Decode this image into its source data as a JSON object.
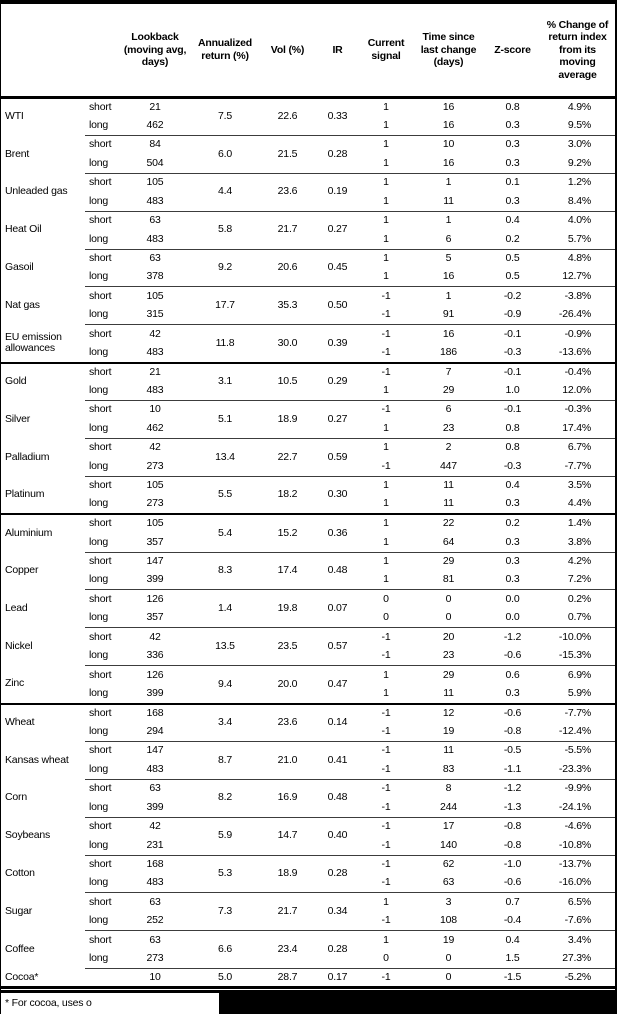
{
  "table": {
    "headers": [
      "",
      "",
      "Lookback (moving avg, days)",
      "Annualized return (%)",
      "Vol (%)",
      "IR",
      "Current signal",
      "Time since last change (days)",
      "Z-score",
      "% Change of return index from its moving average"
    ],
    "groups": [
      {
        "name": "WTI",
        "section": false,
        "merged": [
          "7.5",
          "22.6",
          "0.33"
        ],
        "rows": [
          [
            "short",
            "21",
            "1",
            "16",
            "0.8",
            "4.9%"
          ],
          [
            "long",
            "462",
            "1",
            "16",
            "0.3",
            "9.5%"
          ]
        ]
      },
      {
        "name": "Brent",
        "section": false,
        "merged": [
          "6.0",
          "21.5",
          "0.28"
        ],
        "rows": [
          [
            "short",
            "84",
            "1",
            "10",
            "0.3",
            "3.0%"
          ],
          [
            "long",
            "504",
            "1",
            "16",
            "0.3",
            "9.2%"
          ]
        ]
      },
      {
        "name": "Unleaded gas",
        "section": false,
        "merged": [
          "4.4",
          "23.6",
          "0.19"
        ],
        "rows": [
          [
            "short",
            "105",
            "1",
            "1",
            "0.1",
            "1.2%"
          ],
          [
            "long",
            "483",
            "1",
            "11",
            "0.3",
            "8.4%"
          ]
        ]
      },
      {
        "name": "Heat Oil",
        "section": false,
        "merged": [
          "5.8",
          "21.7",
          "0.27"
        ],
        "rows": [
          [
            "short",
            "63",
            "1",
            "1",
            "0.4",
            "4.0%"
          ],
          [
            "long",
            "483",
            "1",
            "6",
            "0.2",
            "5.7%"
          ]
        ]
      },
      {
        "name": "Gasoil",
        "section": false,
        "merged": [
          "9.2",
          "20.6",
          "0.45"
        ],
        "rows": [
          [
            "short",
            "63",
            "1",
            "5",
            "0.5",
            "4.8%"
          ],
          [
            "long",
            "378",
            "1",
            "16",
            "0.5",
            "12.7%"
          ]
        ]
      },
      {
        "name": "Nat gas",
        "section": false,
        "merged": [
          "17.7",
          "35.3",
          "0.50"
        ],
        "rows": [
          [
            "short",
            "105",
            "-1",
            "1",
            "-0.2",
            "-3.8%"
          ],
          [
            "long",
            "315",
            "-1",
            "91",
            "-0.9",
            "-26.4%"
          ]
        ]
      },
      {
        "name": "EU emission allowances",
        "section": false,
        "merged": [
          "11.8",
          "30.0",
          "0.39"
        ],
        "rows": [
          [
            "short",
            "42",
            "-1",
            "16",
            "-0.1",
            "-0.9%"
          ],
          [
            "long",
            "483",
            "-1",
            "186",
            "-0.3",
            "-13.6%"
          ]
        ]
      },
      {
        "name": "Gold",
        "section": true,
        "merged": [
          "3.1",
          "10.5",
          "0.29"
        ],
        "rows": [
          [
            "short",
            "21",
            "-1",
            "7",
            "-0.1",
            "-0.4%"
          ],
          [
            "long",
            "483",
            "1",
            "29",
            "1.0",
            "12.0%"
          ]
        ]
      },
      {
        "name": "Silver",
        "section": false,
        "merged": [
          "5.1",
          "18.9",
          "0.27"
        ],
        "rows": [
          [
            "short",
            "10",
            "-1",
            "6",
            "-0.1",
            "-0.3%"
          ],
          [
            "long",
            "462",
            "1",
            "23",
            "0.8",
            "17.4%"
          ]
        ]
      },
      {
        "name": "Palladium",
        "section": false,
        "merged": [
          "13.4",
          "22.7",
          "0.59"
        ],
        "rows": [
          [
            "short",
            "42",
            "1",
            "2",
            "0.8",
            "6.7%"
          ],
          [
            "long",
            "273",
            "-1",
            "447",
            "-0.3",
            "-7.7%"
          ]
        ]
      },
      {
        "name": "Platinum",
        "section": false,
        "merged": [
          "5.5",
          "18.2",
          "0.30"
        ],
        "rows": [
          [
            "short",
            "105",
            "1",
            "11",
            "0.4",
            "3.5%"
          ],
          [
            "long",
            "273",
            "1",
            "11",
            "0.3",
            "4.4%"
          ]
        ]
      },
      {
        "name": "Aluminium",
        "section": true,
        "merged": [
          "5.4",
          "15.2",
          "0.36"
        ],
        "rows": [
          [
            "short",
            "105",
            "1",
            "22",
            "0.2",
            "1.4%"
          ],
          [
            "long",
            "357",
            "1",
            "64",
            "0.3",
            "3.8%"
          ]
        ]
      },
      {
        "name": "Copper",
        "section": false,
        "merged": [
          "8.3",
          "17.4",
          "0.48"
        ],
        "rows": [
          [
            "short",
            "147",
            "1",
            "29",
            "0.3",
            "4.2%"
          ],
          [
            "long",
            "399",
            "1",
            "81",
            "0.3",
            "7.2%"
          ]
        ]
      },
      {
        "name": "Lead",
        "section": false,
        "merged": [
          "1.4",
          "19.8",
          "0.07"
        ],
        "rows": [
          [
            "short",
            "126",
            "0",
            "0",
            "0.0",
            "0.2%"
          ],
          [
            "long",
            "357",
            "0",
            "0",
            "0.0",
            "0.7%"
          ]
        ]
      },
      {
        "name": "Nickel",
        "section": false,
        "merged": [
          "13.5",
          "23.5",
          "0.57"
        ],
        "rows": [
          [
            "short",
            "42",
            "-1",
            "20",
            "-1.2",
            "-10.0%"
          ],
          [
            "long",
            "336",
            "-1",
            "23",
            "-0.6",
            "-15.3%"
          ]
        ]
      },
      {
        "name": "Zinc",
        "section": false,
        "merged": [
          "9.4",
          "20.0",
          "0.47"
        ],
        "rows": [
          [
            "short",
            "126",
            "1",
            "29",
            "0.6",
            "6.9%"
          ],
          [
            "long",
            "399",
            "1",
            "11",
            "0.3",
            "5.9%"
          ]
        ]
      },
      {
        "name": "Wheat",
        "section": true,
        "merged": [
          "3.4",
          "23.6",
          "0.14"
        ],
        "rows": [
          [
            "short",
            "168",
            "-1",
            "12",
            "-0.6",
            "-7.7%"
          ],
          [
            "long",
            "294",
            "-1",
            "19",
            "-0.8",
            "-12.4%"
          ]
        ]
      },
      {
        "name": "Kansas wheat",
        "section": false,
        "merged": [
          "8.7",
          "21.0",
          "0.41"
        ],
        "rows": [
          [
            "short",
            "147",
            "-1",
            "11",
            "-0.5",
            "-5.5%"
          ],
          [
            "long",
            "483",
            "-1",
            "83",
            "-1.1",
            "-23.3%"
          ]
        ]
      },
      {
        "name": "Corn",
        "section": false,
        "merged": [
          "8.2",
          "16.9",
          "0.48"
        ],
        "rows": [
          [
            "short",
            "63",
            "-1",
            "8",
            "-1.2",
            "-9.9%"
          ],
          [
            "long",
            "399",
            "-1",
            "244",
            "-1.3",
            "-24.1%"
          ]
        ]
      },
      {
        "name": "Soybeans",
        "section": false,
        "merged": [
          "5.9",
          "14.7",
          "0.40"
        ],
        "rows": [
          [
            "short",
            "42",
            "-1",
            "17",
            "-0.8",
            "-4.6%"
          ],
          [
            "long",
            "231",
            "-1",
            "140",
            "-0.8",
            "-10.8%"
          ]
        ]
      },
      {
        "name": "Cotton",
        "section": false,
        "merged": [
          "5.3",
          "18.9",
          "0.28"
        ],
        "rows": [
          [
            "short",
            "168",
            "-1",
            "62",
            "-1.0",
            "-13.7%"
          ],
          [
            "long",
            "483",
            "-1",
            "63",
            "-0.6",
            "-16.0%"
          ]
        ]
      },
      {
        "name": "Sugar",
        "section": false,
        "merged": [
          "7.3",
          "21.7",
          "0.34"
        ],
        "rows": [
          [
            "short",
            "63",
            "1",
            "3",
            "0.7",
            "6.5%"
          ],
          [
            "long",
            "252",
            "-1",
            "108",
            "-0.4",
            "-7.6%"
          ]
        ]
      },
      {
        "name": "Coffee",
        "section": false,
        "merged": [
          "6.6",
          "23.4",
          "0.28"
        ],
        "rows": [
          [
            "short",
            "63",
            "1",
            "19",
            "0.4",
            "3.4%"
          ],
          [
            "long",
            "273",
            "0",
            "0",
            "1.5",
            "27.3%"
          ]
        ]
      },
      {
        "name": "Cocoa*",
        "section": false,
        "merged": [
          "5.0",
          "28.7",
          "0.17"
        ],
        "rows": [
          [
            "",
            "10",
            "-1",
            "0",
            "-1.5",
            "-5.2%"
          ]
        ]
      }
    ]
  },
  "footnote": {
    "text": "* For cocoa, uses o"
  },
  "colors": {
    "frame": "#000000",
    "thin_rule": "#3c3c3c",
    "redaction": "#000000"
  }
}
